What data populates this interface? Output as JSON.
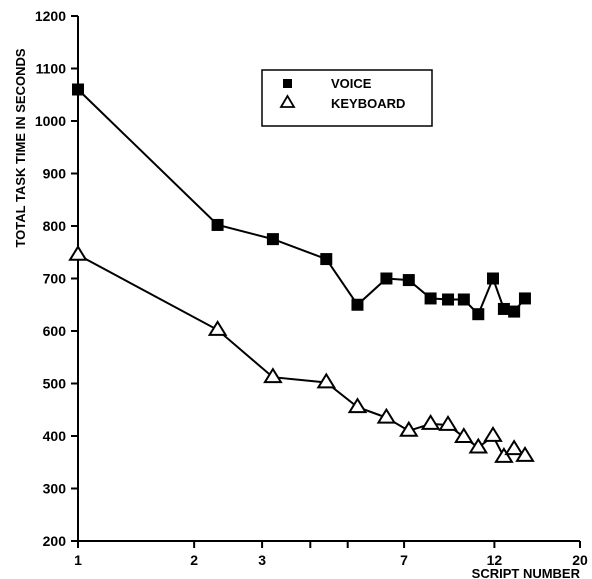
{
  "chart_data": {
    "type": "line",
    "title": "",
    "xlabel": "SCRIPT NUMBER",
    "ylabel": "TOTAL TASK TIME IN SECONDS",
    "x_scale": "log",
    "xlim": [
      1,
      20
    ],
    "ylim": [
      200,
      1200
    ],
    "x_ticks": [
      {
        "value": 1,
        "label": "1"
      },
      {
        "value": 2,
        "label": "2"
      },
      {
        "value": 3,
        "label": "3"
      },
      {
        "value": 4,
        "label": ""
      },
      {
        "value": 5,
        "label": ""
      },
      {
        "value": 7,
        "label": "7"
      },
      {
        "value": 12,
        "label": "12"
      },
      {
        "value": 20,
        "label": "20"
      }
    ],
    "y_ticks": [
      200,
      300,
      400,
      500,
      600,
      700,
      800,
      900,
      1000,
      1100,
      1200
    ],
    "grid": false,
    "legend_position": "top-right",
    "series": [
      {
        "name": "VOICE",
        "marker": "filled-square",
        "x": [
          1,
          2.3,
          3.2,
          4.4,
          5.3,
          6.3,
          7.2,
          8.2,
          9.1,
          10.0,
          10.9,
          11.9,
          12.7,
          13.5,
          14.4
        ],
        "y": [
          1060,
          802,
          775,
          737,
          650,
          700,
          697,
          662,
          660,
          660,
          632,
          700,
          642,
          637,
          662
        ]
      },
      {
        "name": "KEYBOARD",
        "marker": "open-triangle",
        "x": [
          1,
          2.3,
          3.2,
          4.4,
          5.3,
          6.3,
          7.2,
          8.2,
          9.1,
          10.0,
          10.9,
          11.9,
          12.7,
          13.5,
          14.4
        ],
        "y": [
          745,
          602,
          512,
          502,
          455,
          435,
          410,
          423,
          421,
          398,
          378,
          400,
          360,
          375,
          362
        ]
      }
    ]
  }
}
